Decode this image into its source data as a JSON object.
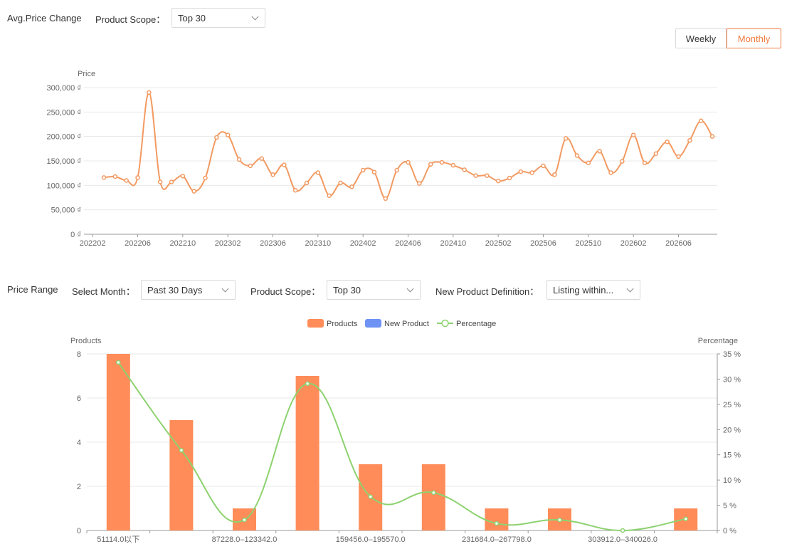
{
  "section1": {
    "title": "Avg.Price Change",
    "product_scope_label": "Product Scope：",
    "product_scope_value": "Top 30",
    "toggle_weekly": "Weekly",
    "toggle_monthly": "Monthly",
    "active_toggle": "Monthly"
  },
  "section2": {
    "title": "Price Range",
    "select_month_label": "Select Month：",
    "select_month_value": "Past 30 Days",
    "product_scope_label": "Product Scope：",
    "product_scope_value": "Top 30",
    "new_product_label": "New Product Definition：",
    "new_product_value": "Listing within..."
  },
  "colors": {
    "line": "#f29a62",
    "bar": "#ff8c59",
    "new_product": "#6e93f5",
    "percentage": "#8dd26f",
    "accent": "#f07b3f"
  },
  "chart_data": [
    {
      "type": "line",
      "ylabel": "Price",
      "ylim": [
        0,
        300000
      ],
      "yticks": [
        "0 ₫",
        "50,000 ₫",
        "100,000 ₫",
        "150,000 ₫",
        "200,000 ₫",
        "250,000 ₫",
        "300,000 ₫"
      ],
      "xticks": [
        "202202",
        "202206",
        "202210",
        "202302",
        "202306",
        "202310",
        "202402",
        "202406",
        "202410",
        "202502",
        "202506",
        "202510",
        "202602",
        "202606"
      ],
      "grid": true,
      "series": [
        {
          "values": [
            116000,
            118000,
            110000,
            116000,
            290000,
            107000,
            107000,
            119000,
            88000,
            115000,
            198000,
            203000,
            153000,
            140000,
            155000,
            122000,
            142000,
            90000,
            105000,
            126000,
            79000,
            105000,
            97000,
            131000,
            127000,
            73000,
            131000,
            147000,
            104000,
            143000,
            147000,
            141000,
            132000,
            120000,
            120000,
            109000,
            115000,
            128000,
            126000,
            140000,
            122000,
            196000,
            161000,
            146000,
            170000,
            126000,
            149000,
            203000,
            146000,
            165000,
            189000,
            159000,
            192000,
            232000,
            200000
          ]
        }
      ]
    },
    {
      "type": "bar",
      "categories": [
        "51114.0以下",
        "",
        "87228.0–123342.0",
        "",
        "159456.0–195570.0",
        "",
        "231684.0–267798.0",
        "",
        "303912.0–340026.0",
        ""
      ],
      "ylabel_left": "Products",
      "ylabel_right": "Percentage",
      "ylim_left": [
        0,
        8
      ],
      "ylim_right": [
        0,
        35
      ],
      "yticks_left": [
        "0",
        "2",
        "4",
        "6",
        "8"
      ],
      "yticks_right": [
        "0 %",
        "5 %",
        "10 %",
        "15 %",
        "20 %",
        "25 %",
        "30 %",
        "35 %"
      ],
      "legend": [
        "Products",
        "New Product",
        "Percentage"
      ],
      "legend_position": "top",
      "series": [
        {
          "name": "Products",
          "type": "bar",
          "values": [
            8,
            5,
            1,
            7,
            3,
            3,
            1,
            1,
            0,
            1
          ]
        },
        {
          "name": "New Product",
          "type": "bar",
          "values": [
            0,
            0,
            0,
            0,
            0,
            0,
            0,
            0,
            0,
            0
          ]
        },
        {
          "name": "Percentage",
          "type": "line",
          "values": [
            33.3,
            15.9,
            2.1,
            29.1,
            6.7,
            7.5,
            1.4,
            2.1,
            0,
            2.3
          ]
        }
      ]
    }
  ]
}
